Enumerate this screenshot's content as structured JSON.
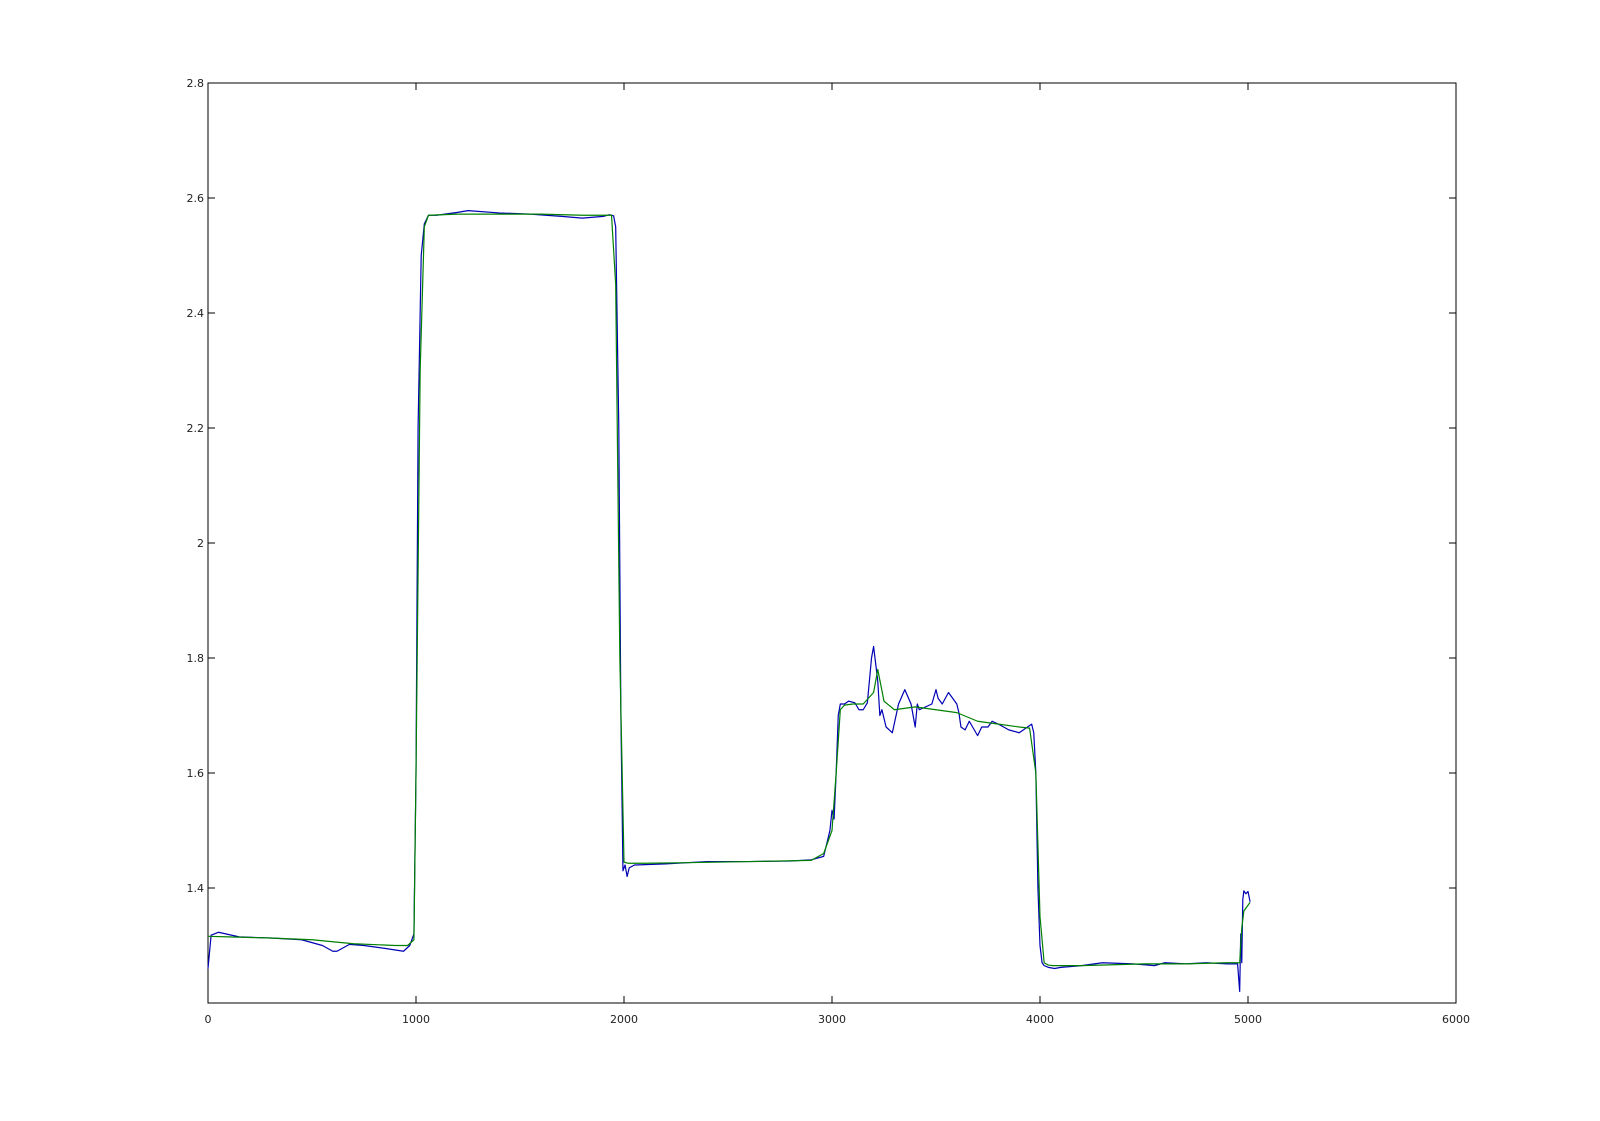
{
  "chart_data": {
    "type": "line",
    "title": "",
    "xlabel": "",
    "ylabel": "",
    "xlim": [
      0,
      6000
    ],
    "ylim": [
      1.2,
      2.8
    ],
    "xticks": [
      0,
      1000,
      2000,
      3000,
      4000,
      5000,
      6000
    ],
    "xtick_labels": [
      "0",
      "1000",
      "2000",
      "3000",
      "4000",
      "5000",
      "6000"
    ],
    "yticks": [
      1.4,
      1.6,
      1.8,
      2.0,
      2.2,
      2.4,
      2.6,
      2.8
    ],
    "ytick_labels": [
      "1.4",
      "1.6",
      "1.8",
      "2",
      "2.2",
      "2.4",
      "2.6",
      "2.8"
    ],
    "grid": false,
    "legend": "none",
    "series": [
      {
        "color": "#0000b4",
        "x": [
          0,
          15,
          50,
          150,
          300,
          450,
          550,
          600,
          620,
          680,
          750,
          850,
          940,
          970,
          990,
          1000,
          1010,
          1025,
          1040,
          1060,
          1100,
          1200,
          1250,
          1400,
          1550,
          1700,
          1800,
          1900,
          1930,
          1950,
          1960,
          1975,
          1985,
          1995,
          2005,
          2015,
          2025,
          2050,
          2200,
          2400,
          2600,
          2800,
          2900,
          2960,
          2990,
          3000,
          3010,
          3020,
          3030,
          3040,
          3050,
          3060,
          3080,
          3110,
          3130,
          3150,
          3170,
          3190,
          3200,
          3220,
          3230,
          3240,
          3260,
          3290,
          3320,
          3350,
          3380,
          3400,
          3410,
          3420,
          3450,
          3480,
          3500,
          3510,
          3530,
          3560,
          3600,
          3610,
          3620,
          3640,
          3660,
          3700,
          3720,
          3730,
          3750,
          3770,
          3800,
          3850,
          3900,
          3940,
          3960,
          3970,
          3980,
          3990,
          4000,
          4010,
          4020,
          4040,
          4070,
          4100,
          4200,
          4300,
          4450,
          4550,
          4600,
          4700,
          4800,
          4900,
          4950,
          4960,
          4965,
          4970,
          4975,
          4980,
          4990,
          5000,
          5010
        ],
        "values": [
          1.26,
          1.318,
          1.323,
          1.315,
          1.313,
          1.31,
          1.3,
          1.29,
          1.29,
          1.302,
          1.3,
          1.295,
          1.29,
          1.3,
          1.32,
          1.6,
          2.2,
          2.5,
          2.555,
          2.57,
          2.57,
          2.575,
          2.578,
          2.574,
          2.572,
          2.568,
          2.565,
          2.568,
          2.571,
          2.569,
          2.55,
          2.2,
          1.7,
          1.43,
          1.44,
          1.42,
          1.435,
          1.44,
          1.442,
          1.446,
          1.446,
          1.447,
          1.449,
          1.455,
          1.5,
          1.535,
          1.52,
          1.6,
          1.7,
          1.72,
          1.72,
          1.72,
          1.725,
          1.722,
          1.71,
          1.71,
          1.722,
          1.8,
          1.82,
          1.76,
          1.7,
          1.71,
          1.68,
          1.67,
          1.72,
          1.745,
          1.72,
          1.68,
          1.72,
          1.71,
          1.715,
          1.72,
          1.745,
          1.73,
          1.72,
          1.74,
          1.72,
          1.705,
          1.68,
          1.675,
          1.69,
          1.665,
          1.68,
          1.68,
          1.68,
          1.69,
          1.685,
          1.675,
          1.67,
          1.68,
          1.685,
          1.67,
          1.6,
          1.4,
          1.3,
          1.27,
          1.265,
          1.262,
          1.26,
          1.262,
          1.265,
          1.27,
          1.268,
          1.265,
          1.27,
          1.268,
          1.27,
          1.268,
          1.268,
          1.22,
          1.32,
          1.27,
          1.38,
          1.395,
          1.39,
          1.394,
          1.376
        ]
      },
      {
        "color": "#008000",
        "x": [
          0,
          100,
          300,
          500,
          700,
          900,
          960,
          990,
          1000,
          1020,
          1040,
          1060,
          1200,
          1400,
          1600,
          1800,
          1920,
          1940,
          1960,
          1980,
          2000,
          2020,
          2100,
          2300,
          2600,
          2900,
          2960,
          3000,
          3020,
          3040,
          3060,
          3100,
          3150,
          3200,
          3220,
          3250,
          3300,
          3400,
          3500,
          3600,
          3700,
          3800,
          3900,
          3950,
          3980,
          4000,
          4020,
          4040,
          4060,
          4200,
          4500,
          4700,
          4900,
          4960,
          4970,
          4980,
          5000,
          5010
        ],
        "values": [
          1.316,
          1.315,
          1.313,
          1.31,
          1.303,
          1.3,
          1.3,
          1.31,
          1.6,
          2.3,
          2.55,
          2.57,
          2.572,
          2.572,
          2.572,
          2.57,
          2.57,
          2.57,
          2.45,
          1.8,
          1.445,
          1.443,
          1.443,
          1.444,
          1.446,
          1.448,
          1.46,
          1.5,
          1.6,
          1.71,
          1.718,
          1.72,
          1.72,
          1.74,
          1.78,
          1.725,
          1.71,
          1.715,
          1.71,
          1.705,
          1.69,
          1.685,
          1.68,
          1.678,
          1.6,
          1.35,
          1.27,
          1.266,
          1.265,
          1.265,
          1.268,
          1.268,
          1.27,
          1.27,
          1.33,
          1.36,
          1.37,
          1.375
        ]
      }
    ]
  }
}
